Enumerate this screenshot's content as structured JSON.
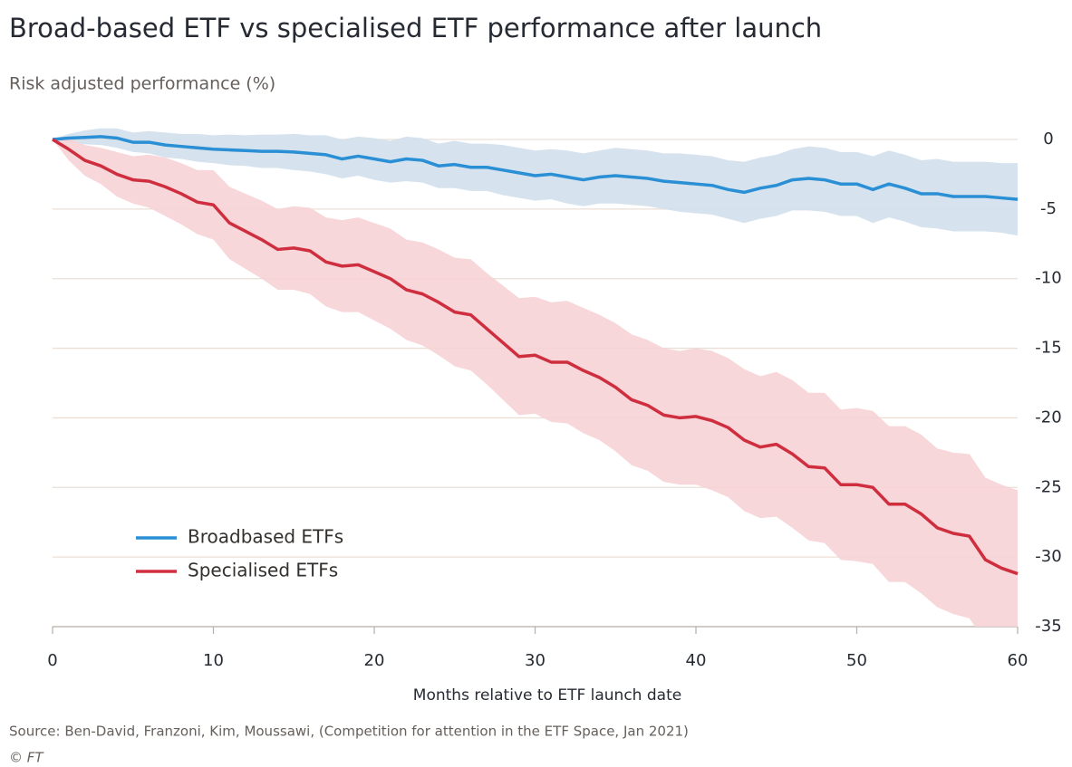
{
  "chart_data": {
    "type": "line",
    "title": "Broad-based ETF vs specialised ETF performance after launch",
    "subtitle": "Risk adjusted performance (%)",
    "x_label": "Months relative to ETF launch date",
    "source": "Source: Ben-David, Franzoni, Kim, Moussawi, (Competition for attention in the ETF Space, Jan 2021)",
    "credit": "© FT",
    "x": [
      0,
      1,
      2,
      3,
      4,
      5,
      6,
      7,
      8,
      9,
      10,
      11,
      12,
      13,
      14,
      15,
      16,
      17,
      18,
      19,
      20,
      21,
      22,
      23,
      24,
      25,
      26,
      27,
      28,
      29,
      30,
      31,
      32,
      33,
      34,
      35,
      36,
      37,
      38,
      39,
      40,
      41,
      42,
      43,
      44,
      45,
      46,
      47,
      48,
      49,
      50,
      51,
      52,
      53,
      54,
      55,
      56,
      57,
      58,
      59,
      60
    ],
    "xlim": [
      0,
      60
    ],
    "xticks": [
      0,
      10,
      20,
      30,
      40,
      50,
      60
    ],
    "ylim": [
      -35,
      0
    ],
    "yticks": [
      0,
      -5,
      -10,
      -15,
      -20,
      -25,
      -30,
      -35
    ],
    "y_axis_side": "right",
    "grid": true,
    "legend_position": "lower left",
    "series": [
      {
        "name": "Broadbased ETFs",
        "color": "#2a8fd4",
        "band_color": "#d2e0ec",
        "values": [
          0,
          0.1,
          0.15,
          0.2,
          0.1,
          -0.2,
          -0.2,
          -0.4,
          -0.5,
          -0.6,
          -0.7,
          -0.75,
          -0.8,
          -0.85,
          -0.85,
          -0.9,
          -1.0,
          -1.1,
          -1.4,
          -1.2,
          -1.4,
          -1.6,
          -1.4,
          -1.5,
          -1.9,
          -1.8,
          -2.0,
          -2.0,
          -2.2,
          -2.4,
          -2.6,
          -2.5,
          -2.7,
          -2.9,
          -2.7,
          -2.6,
          -2.7,
          -2.8,
          -3.0,
          -3.1,
          -3.2,
          -3.3,
          -3.6,
          -3.8,
          -3.5,
          -3.3,
          -2.9,
          -2.8,
          -2.9,
          -3.2,
          -3.2,
          -3.6,
          -3.2,
          -3.5,
          -3.9,
          -3.9,
          -4.1,
          -4.1,
          -4.1,
          -4.2,
          -4.3
        ],
        "upper": [
          0,
          0.4,
          0.65,
          0.8,
          0.8,
          0.5,
          0.6,
          0.5,
          0.4,
          0.4,
          0.3,
          0.35,
          0.3,
          0.35,
          0.35,
          0.4,
          0.3,
          0.3,
          0,
          0.2,
          0.1,
          -0.1,
          0.2,
          0.1,
          -0.3,
          -0.1,
          -0.3,
          -0.3,
          -0.4,
          -0.6,
          -0.8,
          -0.7,
          -0.8,
          -1.0,
          -0.8,
          -0.6,
          -0.7,
          -0.8,
          -1.0,
          -1.0,
          -1.1,
          -1.2,
          -1.5,
          -1.6,
          -1.3,
          -1.1,
          -0.7,
          -0.5,
          -0.6,
          -0.9,
          -0.9,
          -1.2,
          -0.8,
          -1.1,
          -1.5,
          -1.4,
          -1.6,
          -1.6,
          -1.6,
          -1.7,
          -1.7
        ],
        "lower": [
          0,
          -0.2,
          -0.35,
          -0.4,
          -0.6,
          -0.9,
          -1.0,
          -1.3,
          -1.4,
          -1.6,
          -1.7,
          -1.85,
          -1.9,
          -2.05,
          -2.05,
          -2.2,
          -2.3,
          -2.5,
          -2.8,
          -2.6,
          -2.9,
          -3.1,
          -3.0,
          -3.1,
          -3.5,
          -3.5,
          -3.7,
          -3.7,
          -4.0,
          -4.2,
          -4.4,
          -4.3,
          -4.6,
          -4.8,
          -4.6,
          -4.6,
          -4.7,
          -4.8,
          -5.0,
          -5.2,
          -5.3,
          -5.4,
          -5.7,
          -6.0,
          -5.7,
          -5.5,
          -5.1,
          -5.1,
          -5.2,
          -5.5,
          -5.5,
          -6.0,
          -5.6,
          -5.9,
          -6.3,
          -6.4,
          -6.6,
          -6.6,
          -6.6,
          -6.7,
          -6.9
        ]
      },
      {
        "name": "Specialised ETFs",
        "color": "#cf2e3e",
        "band_color": "#f6d3d6",
        "values": [
          0,
          -0.7,
          -1.5,
          -1.9,
          -2.5,
          -2.9,
          -3.0,
          -3.4,
          -3.9,
          -4.5,
          -4.7,
          -6.0,
          -6.6,
          -7.2,
          -7.9,
          -7.8,
          -8.0,
          -8.8,
          -9.1,
          -9.0,
          -9.5,
          -10.0,
          -10.8,
          -11.1,
          -11.7,
          -12.4,
          -12.6,
          -13.6,
          -14.6,
          -15.6,
          -15.5,
          -16.0,
          -16.0,
          -16.6,
          -17.1,
          -17.8,
          -18.7,
          -19.1,
          -19.8,
          -20.0,
          -19.9,
          -20.2,
          -20.7,
          -21.6,
          -22.1,
          -21.9,
          -22.6,
          -23.5,
          -23.6,
          -24.8,
          -24.8,
          -25.0,
          -26.2,
          -26.2,
          -26.9,
          -27.9,
          -28.3,
          -28.5,
          -30.2,
          -30.8,
          -31.2
        ],
        "upper": [
          0,
          0.1,
          -0.4,
          -0.6,
          -0.9,
          -1.2,
          -1.1,
          -1.3,
          -1.7,
          -2.2,
          -2.2,
          -3.4,
          -3.9,
          -4.4,
          -5.0,
          -4.8,
          -4.9,
          -5.6,
          -5.8,
          -5.6,
          -6.0,
          -6.4,
          -7.2,
          -7.4,
          -7.9,
          -8.5,
          -8.6,
          -9.6,
          -10.5,
          -11.4,
          -11.3,
          -11.7,
          -11.6,
          -12.1,
          -12.6,
          -13.2,
          -14.0,
          -14.4,
          -15.0,
          -15.2,
          -15.0,
          -15.2,
          -15.7,
          -16.5,
          -17.0,
          -16.7,
          -17.3,
          -18.2,
          -18.2,
          -19.4,
          -19.3,
          -19.5,
          -20.6,
          -20.6,
          -21.2,
          -22.2,
          -22.5,
          -22.6,
          -24.3,
          -24.8,
          -25.2
        ],
        "lower": [
          0,
          -1.5,
          -2.6,
          -3.2,
          -4.1,
          -4.6,
          -4.9,
          -5.5,
          -6.1,
          -6.8,
          -7.2,
          -8.6,
          -9.3,
          -10.0,
          -10.8,
          -10.8,
          -11.1,
          -12.0,
          -12.4,
          -12.4,
          -13.0,
          -13.6,
          -14.4,
          -14.8,
          -15.5,
          -16.3,
          -16.6,
          -17.6,
          -18.7,
          -19.8,
          -19.7,
          -20.3,
          -20.4,
          -21.1,
          -21.6,
          -22.4,
          -23.4,
          -23.8,
          -24.6,
          -24.8,
          -24.8,
          -25.2,
          -25.7,
          -26.7,
          -27.2,
          -27.1,
          -27.9,
          -28.8,
          -29.0,
          -30.2,
          -30.3,
          -30.5,
          -31.8,
          -31.8,
          -32.6,
          -33.6,
          -34.1,
          -34.4,
          -36.1,
          -36.8,
          -37.2
        ]
      }
    ]
  }
}
